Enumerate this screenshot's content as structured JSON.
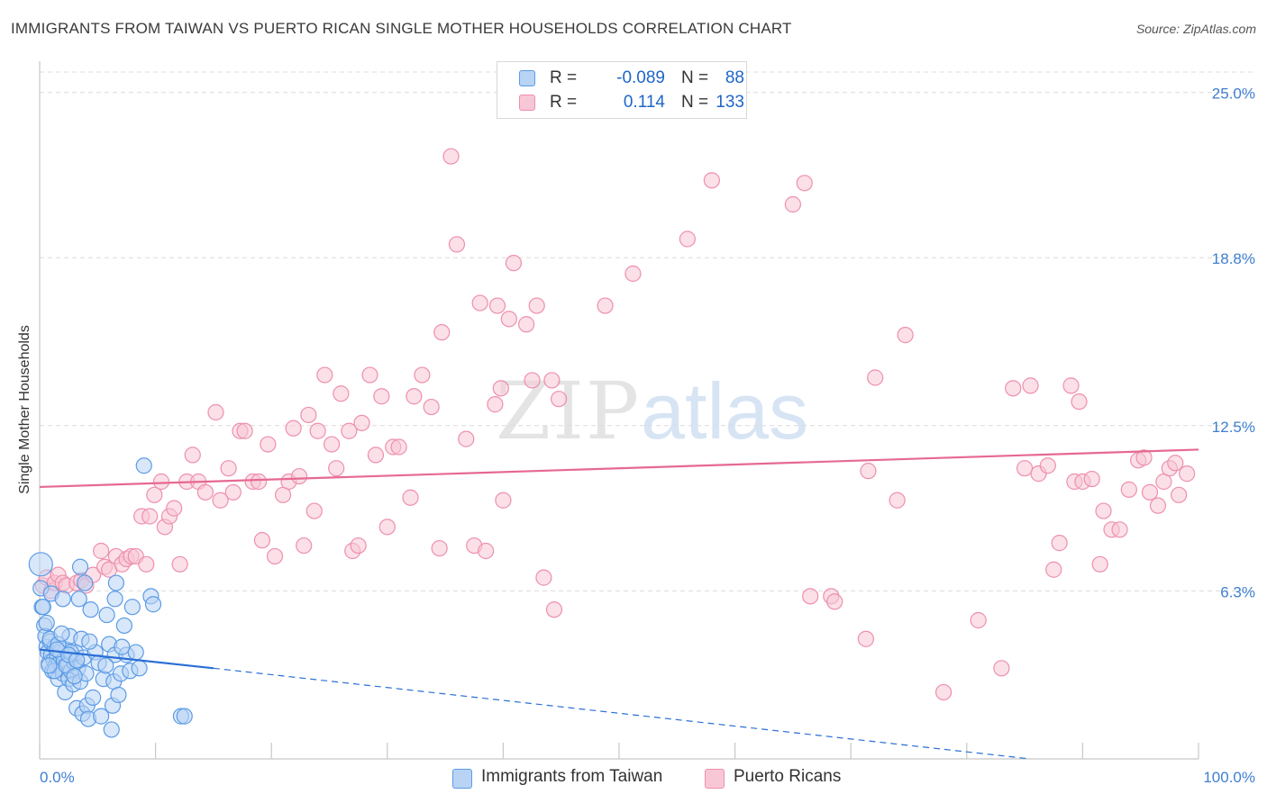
{
  "title": "IMMIGRANTS FROM TAIWAN VS PUERTO RICAN SINGLE MOTHER HOUSEHOLDS CORRELATION CHART",
  "source": "Source: ZipAtlas.com",
  "watermark": {
    "part1": "ZIP",
    "part2": "atlas"
  },
  "colors": {
    "blue": "#5b9be6",
    "blue_fill": "#b8d3f4",
    "blue_line": "#2a6fd6",
    "pink": "#ee8fae",
    "pink_fill": "#f8c7d6",
    "pink_line": "#e66991",
    "tick_label": "#3f7fd0",
    "grid": "#dcdcdc"
  },
  "legend": {
    "rows": [
      {
        "series": "Immigrants from Taiwan",
        "r_label": "R =",
        "r_value": "-0.089",
        "n_label": "N =",
        "n_value": "88",
        "color": "#b8d3f4",
        "border": "#5b9be6"
      },
      {
        "series": "Puerto Ricans",
        "r_label": "R =",
        "r_value": "0.114",
        "n_label": "N =",
        "n_value": "133",
        "color": "#f8c7d6",
        "border": "#ee8fae"
      }
    ]
  },
  "chart_data": {
    "type": "scatter",
    "title": "IMMIGRANTS FROM TAIWAN VS PUERTO RICAN SINGLE MOTHER HOUSEHOLDS CORRELATION CHART",
    "xlabel": "",
    "ylabel": "Single Mother Households",
    "xlim": [
      0,
      100
    ],
    "ylim": [
      0,
      26
    ],
    "x_tick_labels": [
      "0.0%",
      "100.0%"
    ],
    "y_ticks": [
      6.3,
      12.5,
      18.8,
      25.0
    ],
    "y_tick_labels": [
      "6.3%",
      "12.5%",
      "18.8%",
      "25.0%"
    ],
    "grid": true,
    "legend_position": "top-center",
    "series": [
      {
        "name": "Immigrants from Taiwan",
        "color": "#5b9be6",
        "r": -0.089,
        "n": 88,
        "trend": {
          "x0": 0,
          "y0": 4.1,
          "x1": 15,
          "y1": 3.4,
          "dashed_to_x": 100,
          "dashed_to_y": -0.7
        },
        "points": [
          [
            0.1,
            7.3
          ],
          [
            0.1,
            6.4
          ],
          [
            0.2,
            5.7
          ],
          [
            0.4,
            5.0
          ],
          [
            0.5,
            4.6
          ],
          [
            0.6,
            4.2
          ],
          [
            0.7,
            4.0
          ],
          [
            0.8,
            3.6
          ],
          [
            0.9,
            4.4
          ],
          [
            1.0,
            3.9
          ],
          [
            1.1,
            3.3
          ],
          [
            1.2,
            3.7
          ],
          [
            1.3,
            4.2
          ],
          [
            1.4,
            3.5
          ],
          [
            1.5,
            3.8
          ],
          [
            1.6,
            3.0
          ],
          [
            1.7,
            3.6
          ],
          [
            1.8,
            4.0
          ],
          [
            1.9,
            3.4
          ],
          [
            2.0,
            3.2
          ],
          [
            2.1,
            3.7
          ],
          [
            2.2,
            2.5
          ],
          [
            2.3,
            4.1
          ],
          [
            2.4,
            3.5
          ],
          [
            2.5,
            3.0
          ],
          [
            2.6,
            4.6
          ],
          [
            2.7,
            3.3
          ],
          [
            2.8,
            3.8
          ],
          [
            2.9,
            2.8
          ],
          [
            3.0,
            3.6
          ],
          [
            3.1,
            4.0
          ],
          [
            3.2,
            1.9
          ],
          [
            3.3,
            3.4
          ],
          [
            3.4,
            6.0
          ],
          [
            3.5,
            2.9
          ],
          [
            3.6,
            4.5
          ],
          [
            3.7,
            1.7
          ],
          [
            3.8,
            3.8
          ],
          [
            4.0,
            3.2
          ],
          [
            4.1,
            2.0
          ],
          [
            4.2,
            1.5
          ],
          [
            4.4,
            5.6
          ],
          [
            4.6,
            2.3
          ],
          [
            4.8,
            4.0
          ],
          [
            5.1,
            3.6
          ],
          [
            5.3,
            1.6
          ],
          [
            5.5,
            3.0
          ],
          [
            5.8,
            5.4
          ],
          [
            6.0,
            4.3
          ],
          [
            6.2,
            1.1
          ],
          [
            6.3,
            2.0
          ],
          [
            6.4,
            2.9
          ],
          [
            6.5,
            3.9
          ],
          [
            6.6,
            6.6
          ],
          [
            6.8,
            2.4
          ],
          [
            7.0,
            3.2
          ],
          [
            7.3,
            5.0
          ],
          [
            7.5,
            3.9
          ],
          [
            7.8,
            3.3
          ],
          [
            8.0,
            5.7
          ],
          [
            8.3,
            4.0
          ],
          [
            8.6,
            3.4
          ],
          [
            9.0,
            11.0
          ],
          [
            9.6,
            6.1
          ],
          [
            9.8,
            5.8
          ],
          [
            12.2,
            1.6
          ],
          [
            12.5,
            1.6
          ],
          [
            0.3,
            5.7
          ],
          [
            0.6,
            5.1
          ],
          [
            0.9,
            4.5
          ],
          [
            1.0,
            6.2
          ],
          [
            1.3,
            3.3
          ],
          [
            1.6,
            4.3
          ],
          [
            2.0,
            6.0
          ],
          [
            2.3,
            3.5
          ],
          [
            2.7,
            4.0
          ],
          [
            3.0,
            3.1
          ],
          [
            3.5,
            7.2
          ],
          [
            3.9,
            6.6
          ],
          [
            4.3,
            4.4
          ],
          [
            5.7,
            3.5
          ],
          [
            6.5,
            6.0
          ],
          [
            7.1,
            4.2
          ],
          [
            1.5,
            4.1
          ],
          [
            2.5,
            3.9
          ],
          [
            0.8,
            3.5
          ],
          [
            1.9,
            4.7
          ],
          [
            3.2,
            3.7
          ]
        ]
      },
      {
        "name": "Puerto Ricans",
        "color": "#ee8fae",
        "r": 0.114,
        "n": 133,
        "trend": {
          "x0": 0,
          "y0": 10.2,
          "x1": 100,
          "y1": 11.6
        },
        "points": [
          [
            0.3,
            6.5
          ],
          [
            0.6,
            6.8
          ],
          [
            1.0,
            6.3
          ],
          [
            1.3,
            6.6
          ],
          [
            1.6,
            6.9
          ],
          [
            2.0,
            6.6
          ],
          [
            2.3,
            6.5
          ],
          [
            3.2,
            6.6
          ],
          [
            3.6,
            6.7
          ],
          [
            4.0,
            6.5
          ],
          [
            4.6,
            6.9
          ],
          [
            5.3,
            7.8
          ],
          [
            5.6,
            7.2
          ],
          [
            6.0,
            7.1
          ],
          [
            6.6,
            7.6
          ],
          [
            7.1,
            7.3
          ],
          [
            7.5,
            7.5
          ],
          [
            7.9,
            7.6
          ],
          [
            8.3,
            7.6
          ],
          [
            8.8,
            9.1
          ],
          [
            9.2,
            7.3
          ],
          [
            9.5,
            9.1
          ],
          [
            9.9,
            9.9
          ],
          [
            10.5,
            10.4
          ],
          [
            10.8,
            8.7
          ],
          [
            11.2,
            9.1
          ],
          [
            11.6,
            9.4
          ],
          [
            12.1,
            7.3
          ],
          [
            12.7,
            10.4
          ],
          [
            13.2,
            11.4
          ],
          [
            13.7,
            10.4
          ],
          [
            14.3,
            10.0
          ],
          [
            15.2,
            13.0
          ],
          [
            15.6,
            9.7
          ],
          [
            16.3,
            10.9
          ],
          [
            16.7,
            10.0
          ],
          [
            17.3,
            12.3
          ],
          [
            17.7,
            12.3
          ],
          [
            18.4,
            10.4
          ],
          [
            18.9,
            10.4
          ],
          [
            19.2,
            8.2
          ],
          [
            19.7,
            11.8
          ],
          [
            20.3,
            7.6
          ],
          [
            21.0,
            9.9
          ],
          [
            21.5,
            10.4
          ],
          [
            21.9,
            12.4
          ],
          [
            22.4,
            10.6
          ],
          [
            22.8,
            8.0
          ],
          [
            23.2,
            12.9
          ],
          [
            23.7,
            9.3
          ],
          [
            24.0,
            12.3
          ],
          [
            24.6,
            14.4
          ],
          [
            25.2,
            11.8
          ],
          [
            25.6,
            10.9
          ],
          [
            26.0,
            13.7
          ],
          [
            26.7,
            12.3
          ],
          [
            27.0,
            7.8
          ],
          [
            27.5,
            8.0
          ],
          [
            27.8,
            12.6
          ],
          [
            28.5,
            14.4
          ],
          [
            29.0,
            11.4
          ],
          [
            29.5,
            13.6
          ],
          [
            30.0,
            8.7
          ],
          [
            30.5,
            11.7
          ],
          [
            31.0,
            11.7
          ],
          [
            32.0,
            9.8
          ],
          [
            32.3,
            13.6
          ],
          [
            33.0,
            14.4
          ],
          [
            33.8,
            13.2
          ],
          [
            34.5,
            7.9
          ],
          [
            34.7,
            16.0
          ],
          [
            35.5,
            22.6
          ],
          [
            36.0,
            19.3
          ],
          [
            36.8,
            12.0
          ],
          [
            37.5,
            8.0
          ],
          [
            38.0,
            17.1
          ],
          [
            38.5,
            7.8
          ],
          [
            39.3,
            13.3
          ],
          [
            39.5,
            17.0
          ],
          [
            39.8,
            13.9
          ],
          [
            40.0,
            9.7
          ],
          [
            40.5,
            16.5
          ],
          [
            40.9,
            18.6
          ],
          [
            42.0,
            16.3
          ],
          [
            42.5,
            14.2
          ],
          [
            42.9,
            17.0
          ],
          [
            43.5,
            6.8
          ],
          [
            44.2,
            14.2
          ],
          [
            44.4,
            5.6
          ],
          [
            44.8,
            13.5
          ],
          [
            48.8,
            17.0
          ],
          [
            51.2,
            18.2
          ],
          [
            55.9,
            19.5
          ],
          [
            58.0,
            21.7
          ],
          [
            65.0,
            20.8
          ],
          [
            66.0,
            21.6
          ],
          [
            66.5,
            6.1
          ],
          [
            68.3,
            6.1
          ],
          [
            68.6,
            5.9
          ],
          [
            71.3,
            4.5
          ],
          [
            71.5,
            10.8
          ],
          [
            72.1,
            14.3
          ],
          [
            74.0,
            9.7
          ],
          [
            74.7,
            15.9
          ],
          [
            78.0,
            2.5
          ],
          [
            81.0,
            5.2
          ],
          [
            83.0,
            3.4
          ],
          [
            84.0,
            13.9
          ],
          [
            85.0,
            10.9
          ],
          [
            85.5,
            14.0
          ],
          [
            86.2,
            10.7
          ],
          [
            87.0,
            11.0
          ],
          [
            87.5,
            7.1
          ],
          [
            88.0,
            8.1
          ],
          [
            89.0,
            14.0
          ],
          [
            89.3,
            10.4
          ],
          [
            89.7,
            13.4
          ],
          [
            90.0,
            10.4
          ],
          [
            90.8,
            10.5
          ],
          [
            91.5,
            7.3
          ],
          [
            91.8,
            9.3
          ],
          [
            92.5,
            8.6
          ],
          [
            93.2,
            8.6
          ],
          [
            94.0,
            10.1
          ],
          [
            94.8,
            11.2
          ],
          [
            95.3,
            11.3
          ],
          [
            95.8,
            10.0
          ],
          [
            96.5,
            9.5
          ],
          [
            97.0,
            10.4
          ],
          [
            97.5,
            10.9
          ],
          [
            98.0,
            11.1
          ],
          [
            98.3,
            9.9
          ],
          [
            99.0,
            10.7
          ]
        ]
      }
    ]
  }
}
